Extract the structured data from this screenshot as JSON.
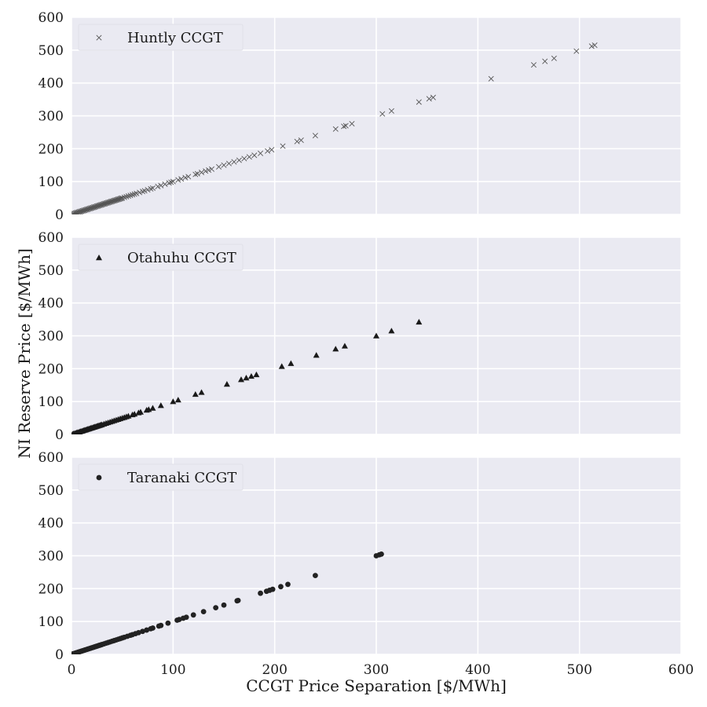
{
  "chart_data": [
    {
      "type": "scatter",
      "title": "",
      "xlabel": "",
      "ylabel": "",
      "xlim": [
        0,
        600
      ],
      "ylim": [
        0,
        600
      ],
      "xticks": [
        0,
        100,
        200,
        300,
        400,
        500,
        600
      ],
      "yticks": [
        0,
        100,
        200,
        300,
        400,
        500,
        600
      ],
      "show_x_tick_labels": false,
      "grid": true,
      "legend": "top-left",
      "series": [
        {
          "name": "Huntly CCGT",
          "marker": "x",
          "color": "#555555",
          "points": [
            [
              1,
              1
            ],
            [
              2,
              2
            ],
            [
              3,
              3
            ],
            [
              4,
              4
            ],
            [
              5,
              5
            ],
            [
              6,
              6
            ],
            [
              7,
              7
            ],
            [
              8,
              8
            ],
            [
              9,
              9
            ],
            [
              10,
              10
            ],
            [
              11,
              11
            ],
            [
              12,
              12
            ],
            [
              13,
              13
            ],
            [
              14,
              14
            ],
            [
              15,
              15
            ],
            [
              16,
              16
            ],
            [
              17,
              17
            ],
            [
              18,
              18
            ],
            [
              19,
              19
            ],
            [
              20,
              20
            ],
            [
              21,
              21
            ],
            [
              22,
              22
            ],
            [
              23,
              23
            ],
            [
              24,
              24
            ],
            [
              25,
              25
            ],
            [
              26,
              26
            ],
            [
              27,
              27
            ],
            [
              28,
              28
            ],
            [
              29,
              29
            ],
            [
              30,
              30
            ],
            [
              31,
              31
            ],
            [
              32,
              32
            ],
            [
              33,
              33
            ],
            [
              34,
              34
            ],
            [
              35,
              35
            ],
            [
              36,
              36
            ],
            [
              37,
              37
            ],
            [
              38,
              38
            ],
            [
              39,
              39
            ],
            [
              40,
              40
            ],
            [
              41,
              41
            ],
            [
              42,
              42
            ],
            [
              43,
              43
            ],
            [
              44,
              44
            ],
            [
              45,
              45
            ],
            [
              46,
              46
            ],
            [
              47,
              47
            ],
            [
              48,
              48
            ],
            [
              49,
              49
            ],
            [
              50,
              50
            ],
            [
              52,
              52
            ],
            [
              54,
              54
            ],
            [
              56,
              56
            ],
            [
              58,
              58
            ],
            [
              60,
              60
            ],
            [
              62,
              62
            ],
            [
              64,
              64
            ],
            [
              67,
              67
            ],
            [
              70,
              70
            ],
            [
              72,
              72
            ],
            [
              75,
              75
            ],
            [
              78,
              78
            ],
            [
              80,
              80
            ],
            [
              85,
              85
            ],
            [
              88,
              88
            ],
            [
              92,
              92
            ],
            [
              96,
              96
            ],
            [
              98,
              98
            ],
            [
              100,
              100
            ],
            [
              105,
              105
            ],
            [
              108,
              108
            ],
            [
              112,
              112
            ],
            [
              115,
              115
            ],
            [
              122,
              122
            ],
            [
              124,
              124
            ],
            [
              128,
              128
            ],
            [
              132,
              132
            ],
            [
              135,
              135
            ],
            [
              138,
              138
            ],
            [
              145,
              145
            ],
            [
              150,
              150
            ],
            [
              155,
              155
            ],
            [
              160,
              160
            ],
            [
              165,
              165
            ],
            [
              170,
              170
            ],
            [
              175,
              175
            ],
            [
              180,
              180
            ],
            [
              186,
              186
            ],
            [
              193,
              193
            ],
            [
              197,
              197
            ],
            [
              208,
              208
            ],
            [
              222,
              222
            ],
            [
              226,
              226
            ],
            [
              240,
              240
            ],
            [
              260,
              260
            ],
            [
              268,
              268
            ],
            [
              270,
              270
            ],
            [
              276,
              276
            ],
            [
              306,
              306
            ],
            [
              315,
              315
            ],
            [
              342,
              342
            ],
            [
              352,
              352
            ],
            [
              356,
              356
            ],
            [
              413,
              413
            ],
            [
              455,
              455
            ],
            [
              466,
              466
            ],
            [
              475,
              475
            ],
            [
              497,
              497
            ],
            [
              512,
              512
            ],
            [
              515,
              515
            ]
          ]
        }
      ]
    },
    {
      "type": "scatter",
      "title": "",
      "xlabel": "",
      "ylabel": "NI Reserve Price [$/MWh]",
      "xlim": [
        0,
        600
      ],
      "ylim": [
        0,
        600
      ],
      "xticks": [
        0,
        100,
        200,
        300,
        400,
        500,
        600
      ],
      "yticks": [
        0,
        100,
        200,
        300,
        400,
        500,
        600
      ],
      "show_x_tick_labels": false,
      "grid": true,
      "legend": "top-left",
      "series": [
        {
          "name": "Otahuhu CCGT",
          "marker": "triangle",
          "color": "#1a1a1a",
          "points": [
            [
              1,
              1
            ],
            [
              2,
              2
            ],
            [
              3,
              3
            ],
            [
              4,
              4
            ],
            [
              5,
              5
            ],
            [
              6,
              6
            ],
            [
              7,
              7
            ],
            [
              8,
              8
            ],
            [
              9,
              9
            ],
            [
              10,
              10
            ],
            [
              11,
              11
            ],
            [
              12,
              12
            ],
            [
              13,
              13
            ],
            [
              14,
              14
            ],
            [
              15,
              15
            ],
            [
              16,
              16
            ],
            [
              17,
              17
            ],
            [
              18,
              18
            ],
            [
              19,
              19
            ],
            [
              20,
              20
            ],
            [
              21,
              21
            ],
            [
              22,
              22
            ],
            [
              23,
              23
            ],
            [
              24,
              24
            ],
            [
              25,
              25
            ],
            [
              26,
              26
            ],
            [
              27,
              27
            ],
            [
              28,
              28
            ],
            [
              29,
              29
            ],
            [
              30,
              30
            ],
            [
              32,
              32
            ],
            [
              34,
              34
            ],
            [
              36,
              36
            ],
            [
              38,
              38
            ],
            [
              40,
              40
            ],
            [
              42,
              42
            ],
            [
              44,
              44
            ],
            [
              46,
              46
            ],
            [
              48,
              48
            ],
            [
              50,
              50
            ],
            [
              52,
              52
            ],
            [
              54,
              54
            ],
            [
              56,
              56
            ],
            [
              60,
              60
            ],
            [
              62,
              62
            ],
            [
              66,
              66
            ],
            [
              68,
              68
            ],
            [
              74,
              74
            ],
            [
              76,
              76
            ],
            [
              80,
              80
            ],
            [
              88,
              88
            ],
            [
              100,
              100
            ],
            [
              105,
              105
            ],
            [
              122,
              122
            ],
            [
              128,
              128
            ],
            [
              153,
              153
            ],
            [
              167,
              167
            ],
            [
              172,
              172
            ],
            [
              177,
              177
            ],
            [
              182,
              182
            ],
            [
              207,
              207
            ],
            [
              216,
              216
            ],
            [
              241,
              241
            ],
            [
              260,
              260
            ],
            [
              269,
              269
            ],
            [
              300,
              300
            ],
            [
              315,
              315
            ],
            [
              342,
              342
            ]
          ]
        }
      ]
    },
    {
      "type": "scatter",
      "title": "",
      "xlabel": "CCGT Price Separation [$/MWh]",
      "ylabel": "",
      "xlim": [
        0,
        600
      ],
      "ylim": [
        0,
        600
      ],
      "xticks": [
        0,
        100,
        200,
        300,
        400,
        500,
        600
      ],
      "yticks": [
        0,
        100,
        200,
        300,
        400,
        500,
        600
      ],
      "show_x_tick_labels": true,
      "grid": true,
      "legend": "top-left",
      "series": [
        {
          "name": "Taranaki CCGT",
          "marker": "circle",
          "color": "#222222",
          "points": [
            [
              1,
              1
            ],
            [
              2,
              2
            ],
            [
              3,
              3
            ],
            [
              4,
              4
            ],
            [
              5,
              5
            ],
            [
              6,
              6
            ],
            [
              7,
              7
            ],
            [
              8,
              8
            ],
            [
              9,
              9
            ],
            [
              10,
              10
            ],
            [
              11,
              11
            ],
            [
              12,
              12
            ],
            [
              13,
              13
            ],
            [
              14,
              14
            ],
            [
              15,
              15
            ],
            [
              16,
              16
            ],
            [
              17,
              17
            ],
            [
              18,
              18
            ],
            [
              19,
              19
            ],
            [
              20,
              20
            ],
            [
              21,
              21
            ],
            [
              22,
              22
            ],
            [
              23,
              23
            ],
            [
              24,
              24
            ],
            [
              25,
              25
            ],
            [
              26,
              26
            ],
            [
              27,
              27
            ],
            [
              28,
              28
            ],
            [
              29,
              29
            ],
            [
              30,
              30
            ],
            [
              32,
              32
            ],
            [
              34,
              34
            ],
            [
              36,
              36
            ],
            [
              38,
              38
            ],
            [
              40,
              40
            ],
            [
              42,
              42
            ],
            [
              44,
              44
            ],
            [
              46,
              46
            ],
            [
              48,
              48
            ],
            [
              50,
              50
            ],
            [
              52,
              52
            ],
            [
              55,
              55
            ],
            [
              58,
              58
            ],
            [
              60,
              60
            ],
            [
              63,
              63
            ],
            [
              66,
              66
            ],
            [
              70,
              70
            ],
            [
              74,
              74
            ],
            [
              78,
              78
            ],
            [
              80,
              80
            ],
            [
              86,
              86
            ],
            [
              88,
              88
            ],
            [
              95,
              95
            ],
            [
              104,
              104
            ],
            [
              106,
              106
            ],
            [
              110,
              110
            ],
            [
              113,
              113
            ],
            [
              120,
              120
            ],
            [
              130,
              130
            ],
            [
              142,
              142
            ],
            [
              150,
              150
            ],
            [
              163,
              163
            ],
            [
              164,
              164
            ],
            [
              186,
              186
            ],
            [
              192,
              192
            ],
            [
              195,
              195
            ],
            [
              198,
              198
            ],
            [
              206,
              206
            ],
            [
              213,
              213
            ],
            [
              240,
              240
            ],
            [
              300,
              300
            ],
            [
              303,
              303
            ],
            [
              305,
              305
            ]
          ]
        }
      ]
    }
  ]
}
